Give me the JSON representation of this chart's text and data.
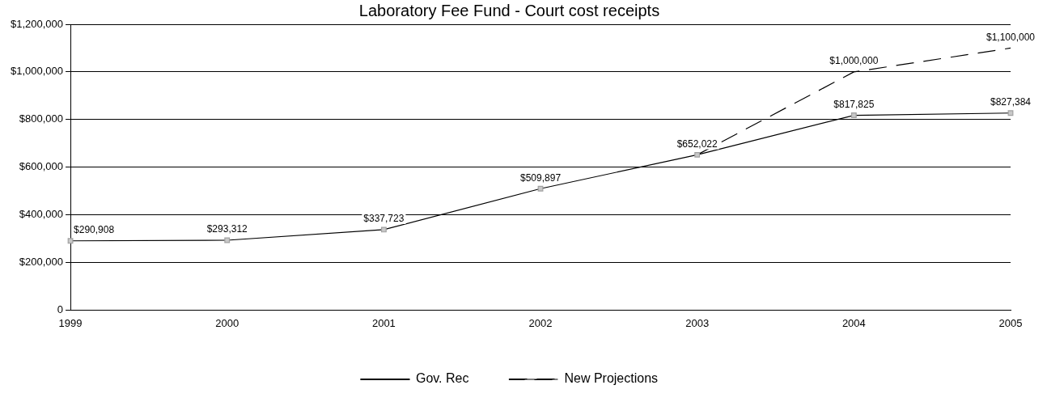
{
  "chart_data": {
    "type": "line",
    "title": "Laboratory Fee Fund - Court cost receipts",
    "categories": [
      "1999",
      "2000",
      "2001",
      "2002",
      "2003",
      "2004",
      "2005"
    ],
    "series": [
      {
        "name": "Gov. Rec",
        "color": "#000000",
        "marker": "square",
        "line_style": "solid",
        "values": [
          290908,
          293312,
          337723,
          509897,
          652022,
          817825,
          827384
        ],
        "value_labels": [
          "$290,908",
          "$293,312",
          "$337,723",
          "$509,897",
          "$652,022",
          "$817,825",
          "$827,384"
        ]
      },
      {
        "name": "New Projections",
        "color": "#000000",
        "marker": "none",
        "line_style": "dashed",
        "values": [
          null,
          null,
          null,
          null,
          652022,
          1000000,
          1100000
        ],
        "value_labels": [
          null,
          null,
          null,
          null,
          null,
          "$1,000,000",
          "$1,100,000"
        ]
      }
    ],
    "ylim": [
      0,
      1200000
    ],
    "yticks": [
      {
        "value": 0,
        "label": "0"
      },
      {
        "value": 200000,
        "label": "$200,000"
      },
      {
        "value": 400000,
        "label": "$400,000"
      },
      {
        "value": 600000,
        "label": "$600,000"
      },
      {
        "value": 800000,
        "label": "$800,000"
      },
      {
        "value": 1000000,
        "label": "$1,000,000"
      },
      {
        "value": 1200000,
        "label": "$1,200,000"
      }
    ],
    "grid": "y",
    "legend": "bottom"
  }
}
